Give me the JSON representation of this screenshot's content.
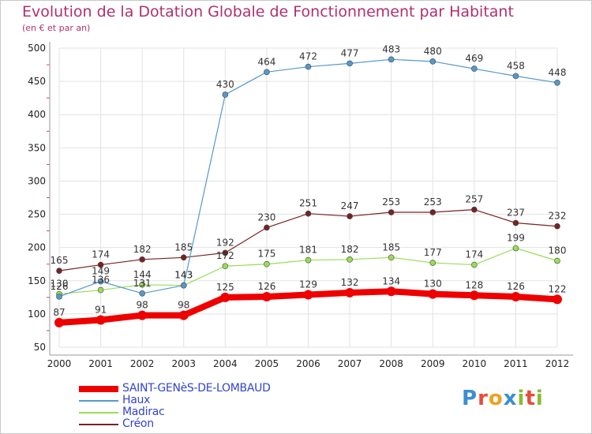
{
  "page": {
    "title": "Evolution de la Dotation Globale de Fonctionnement par Habitant",
    "subtitle": "(en € et par an)",
    "logo_text": "Proxiti"
  },
  "chart_data": {
    "type": "line",
    "title": "Evolution de la Dotation Globale de Fonctionnement par Habitant",
    "subtitle": "(en € et par an)",
    "xlabel": "",
    "ylabel": "",
    "categories": [
      "2000",
      "2001",
      "2002",
      "2003",
      "2004",
      "2005",
      "2006",
      "2007",
      "2008",
      "2009",
      "2010",
      "2011",
      "2012"
    ],
    "yticks": [
      50,
      100,
      150,
      200,
      250,
      300,
      350,
      400,
      450,
      500
    ],
    "ylim": [
      50,
      500
    ],
    "grid": true,
    "legend_position": "bottom-left",
    "series": [
      {
        "name": "SAINT-GENèS-DE-LOMBAUD",
        "color": "#ee0000",
        "values": [
          87,
          91,
          98,
          98,
          125,
          126,
          129,
          132,
          134,
          130,
          128,
          126,
          122
        ],
        "labels": [
          "87",
          "91",
          "98",
          "98",
          "125",
          "126",
          "129",
          "132",
          "134",
          "130",
          "128",
          "126",
          "122"
        ]
      },
      {
        "name": "Haux",
        "color": "#5599cc",
        "values": [
          126,
          149,
          131,
          143,
          430,
          464,
          472,
          477,
          483,
          480,
          469,
          458,
          448
        ],
        "labels": [
          "126",
          "149",
          "131",
          "143",
          "430",
          "464",
          "472",
          "477",
          "483",
          "480",
          "469",
          "458",
          "448"
        ]
      },
      {
        "name": "Madirac",
        "color": "#99dd55",
        "values": [
          130,
          136,
          144,
          143,
          172,
          175,
          181,
          182,
          185,
          177,
          174,
          199,
          180
        ],
        "labels": [
          "130",
          "136",
          "144",
          "143",
          "172",
          "175",
          "181",
          "182",
          "185",
          "177",
          "174",
          "199",
          "180"
        ]
      },
      {
        "name": "Créon",
        "color": "#772222",
        "values": [
          165,
          174,
          182,
          185,
          192,
          230,
          251,
          247,
          253,
          253,
          257,
          237,
          232
        ],
        "labels": [
          "165",
          "174",
          "182",
          "185",
          "192",
          "230",
          "251",
          "247",
          "253",
          "253",
          "257",
          "237",
          "232"
        ]
      }
    ]
  }
}
